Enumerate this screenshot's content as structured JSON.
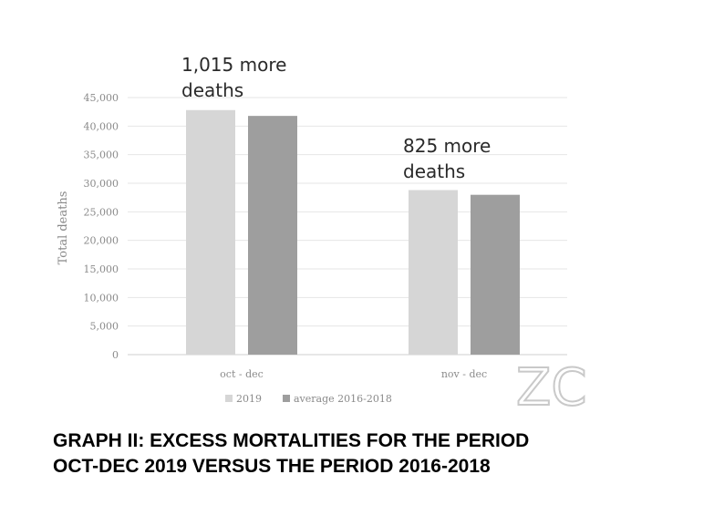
{
  "chart_data": {
    "type": "bar",
    "categories": [
      "oct - dec",
      "nov - dec"
    ],
    "series": [
      {
        "name": "2019",
        "values": [
          42800,
          28800
        ],
        "color": "#d6d6d6"
      },
      {
        "name": "average 2016-2018",
        "values": [
          41785,
          27975
        ],
        "color": "#9e9e9e"
      }
    ],
    "ylabel": "Total deaths",
    "ylim": [
      0,
      45000
    ],
    "yticks": [
      "0",
      "5,000",
      "10,000",
      "15,000",
      "20,000",
      "25,000",
      "30,000",
      "35,000",
      "40,000",
      "45,000"
    ],
    "ytick_values": [
      0,
      5000,
      10000,
      15000,
      20000,
      25000,
      30000,
      35000,
      40000,
      45000
    ],
    "grid": true,
    "legend": "bottom-center",
    "annotations": [
      {
        "category": "oct - dec",
        "lines": [
          "1,015 more",
          "deaths"
        ]
      },
      {
        "category": "nov - dec",
        "lines": [
          "825 more",
          "deaths"
        ]
      }
    ]
  },
  "watermark": "ZC",
  "caption": {
    "line1": "GRAPH II: EXCESS MORTALITIES FOR THE PERIOD",
    "line2": "OCT-DEC 2019 VERSUS THE PERIOD 2016-2018"
  }
}
